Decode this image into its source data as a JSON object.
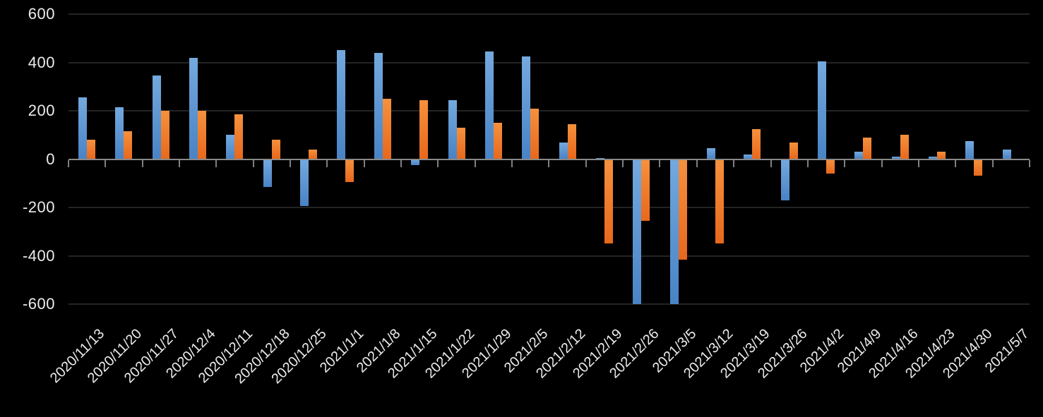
{
  "chart_data": {
    "type": "bar",
    "title": "",
    "legend_position": "none",
    "grid": "horizontal-major",
    "background_color": "#000000",
    "axis_color": "#8a8a8a",
    "gridline_color": "#242424",
    "label_color": "#ececec",
    "ylim": [
      -600,
      600
    ],
    "ytick_values": [
      600,
      400,
      200,
      0,
      -200,
      -400,
      -600
    ],
    "ytick_labels": [
      "600",
      "400",
      "200",
      "0",
      "-200",
      "-400",
      "-600"
    ],
    "categories": [
      "2020/11/13",
      "2020/11/20",
      "2020/11/27",
      "2020/12/4",
      "2020/12/11",
      "2020/12/18",
      "2020/12/25",
      "2021/1/1",
      "2021/1/8",
      "2021/1/15",
      "2021/1/22",
      "2021/1/29",
      "2021/2/5",
      "2021/2/12",
      "2021/2/19",
      "2021/2/26",
      "2021/3/5",
      "2021/3/12",
      "2021/3/19",
      "2021/3/26",
      "2021/4/2",
      "2021/4/9",
      "2021/4/16",
      "2021/4/23",
      "2021/4/30",
      "2021/5/7"
    ],
    "series": [
      {
        "name": "blue",
        "color": "#5b9bd5",
        "gradient": [
          "#74a9de",
          "#4983c5"
        ],
        "values": [
          255,
          215,
          345,
          420,
          100,
          -115,
          -195,
          450,
          440,
          -25,
          245,
          445,
          425,
          70,
          5,
          -600,
          -600,
          45,
          20,
          -170,
          405,
          30,
          10,
          10,
          75,
          40
        ]
      },
      {
        "name": "orange",
        "color": "#ed7d31",
        "gradient": [
          "#f5913e",
          "#e8681c"
        ],
        "values": [
          80,
          115,
          200,
          200,
          185,
          80,
          40,
          -95,
          250,
          245,
          130,
          150,
          210,
          145,
          -350,
          -255,
          -415,
          -350,
          125,
          70,
          -60,
          90,
          100,
          30,
          -70,
          0
        ]
      }
    ]
  }
}
